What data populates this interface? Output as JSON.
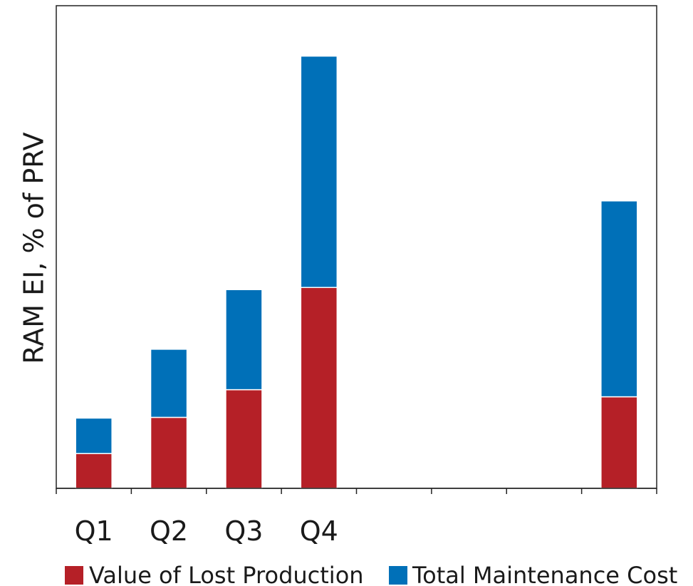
{
  "chart_data": {
    "type": "bar",
    "stacked": true,
    "title": "",
    "xlabel": "",
    "ylabel": "RAM EI, % of PRV",
    "categories": [
      "Q1",
      "Q2",
      "Q3",
      "Q4",
      "",
      "",
      "",
      ""
    ],
    "series": [
      {
        "name": "Value of Lost Production",
        "color": "#b52027",
        "values": [
          49,
          100,
          139,
          283,
          0,
          0,
          0,
          129
        ]
      },
      {
        "name": "Total Maintenance Cost",
        "color": "#0070b8",
        "values": [
          50,
          96,
          141,
          326,
          0,
          0,
          0,
          276
        ]
      }
    ],
    "ylim": [
      0,
      680
    ],
    "y_ticks_shown": false,
    "grid": false,
    "legend": {
      "position": "bottom"
    }
  }
}
